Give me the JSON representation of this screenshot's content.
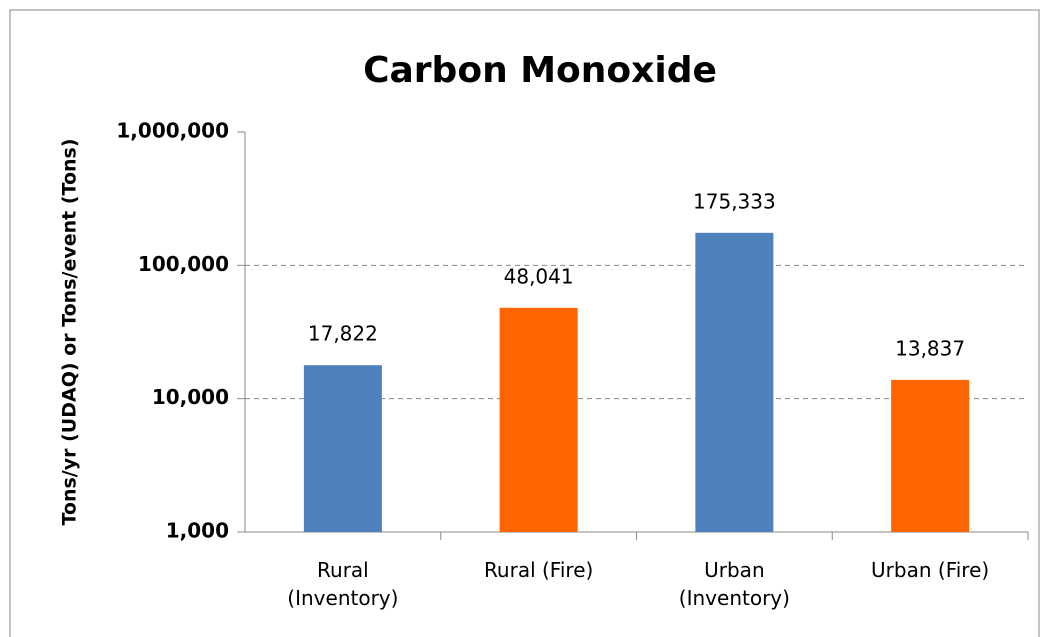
{
  "chart_data": {
    "type": "bar",
    "title": "Carbon Monoxide",
    "y_label": "Tons/yr (UDAQ) or Tons/event (Tons)",
    "categories": [
      "Rural\n(Inventory)",
      "Rural (Fire)",
      "Urban\n(Inventory)",
      "Urban (Fire)"
    ],
    "values": [
      17822,
      48041,
      175333,
      13837
    ],
    "value_labels": [
      "17,822",
      "48,041",
      "175,333",
      "13,837"
    ],
    "colors": [
      "#4f81bd",
      "#ff6600",
      "#4f81bd",
      "#ff6600"
    ],
    "log_scale": true,
    "ylim": [
      1000,
      1000000
    ],
    "yticks": [
      {
        "value": 1000,
        "label": "1,000"
      },
      {
        "value": 10000,
        "label": "10,000"
      },
      {
        "value": 100000,
        "label": "100,000"
      },
      {
        "value": 1000000,
        "label": "1,000,000"
      }
    ],
    "grid": true
  }
}
